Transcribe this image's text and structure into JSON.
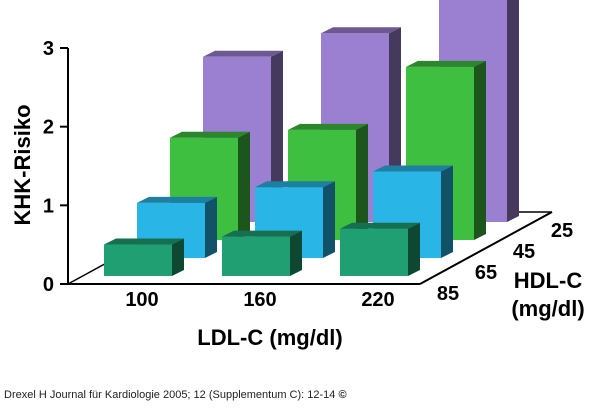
{
  "chart_data": {
    "type": "bar",
    "subtype": "3d-grouped",
    "ylabel": "KHK-Risiko",
    "xlabel": "LDL-C (mg/dl)",
    "zlabel_line1": "HDL-C",
    "zlabel_line2": "(mg/dl)",
    "yticks": [
      "0",
      "1",
      "2",
      "3"
    ],
    "ylim": [
      0,
      3
    ],
    "categories": [
      "100",
      "160",
      "220"
    ],
    "hdl_levels": [
      "25",
      "45",
      "65",
      "85"
    ],
    "series": [
      {
        "name": "25",
        "values": [
          2.1,
          2.4,
          3.4
        ],
        "color": "#9b7fd0"
      },
      {
        "name": "45",
        "values": [
          1.3,
          1.4,
          2.2
        ],
        "color": "#3fbf3f"
      },
      {
        "name": "65",
        "values": [
          0.7,
          0.9,
          1.1
        ],
        "color": "#29b6e6"
      },
      {
        "name": "85",
        "values": [
          0.4,
          0.5,
          0.6
        ],
        "color": "#1f9f72"
      }
    ]
  },
  "source": {
    "text": "Drexel H Journal für Kardiologie 2005; 12 (Supplementum C): 12-14",
    "copyright": "©"
  }
}
